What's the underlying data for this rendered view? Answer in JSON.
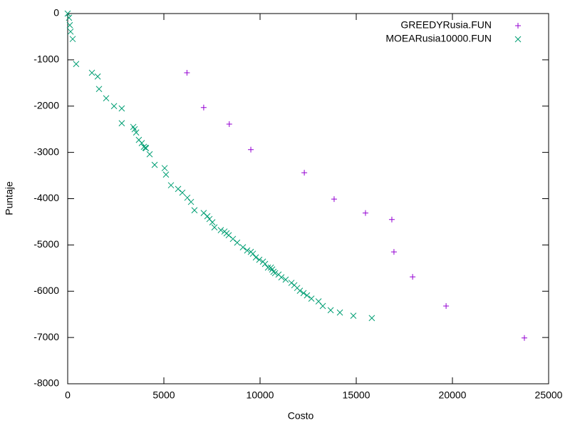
{
  "chart_data": {
    "type": "scatter",
    "x_label": "Costo",
    "y_label": "Puntaje",
    "xlim": [
      0,
      25000
    ],
    "ylim": [
      -8000,
      0
    ],
    "xticks": [
      0,
      5000,
      10000,
      15000,
      20000,
      25000
    ],
    "yticks": [
      -8000,
      -7000,
      -6000,
      -5000,
      -4000,
      -3000,
      -2000,
      -1000,
      0
    ],
    "grid": false,
    "legend": "top-right",
    "series": [
      {
        "name": "GREEDYRusia.FUN",
        "color": "#9400d3",
        "marker": "plus",
        "x": [
          6200,
          7070,
          8400,
          9520,
          12300,
          13850,
          15480,
          16850,
          16960,
          17930,
          19670,
          23740
        ],
        "values": [
          -1280,
          -2030,
          -2390,
          -2940,
          -3440,
          -4010,
          -4310,
          -4450,
          -5150,
          -5690,
          -6320,
          -7010
        ]
      },
      {
        "name": "MOEARusia10000.FUN",
        "color": "#009e73",
        "marker": "cross",
        "x": [
          0,
          70,
          110,
          150,
          260,
          440,
          1260,
          1560,
          1630,
          2000,
          2410,
          2810,
          2810,
          3410,
          3480,
          3560,
          3700,
          3850,
          3960,
          4040,
          4070,
          4260,
          4520,
          5040,
          5110,
          5370,
          5740,
          5960,
          6220,
          6410,
          6590,
          7070,
          7260,
          7370,
          7520,
          7630,
          7960,
          8150,
          8260,
          8370,
          8590,
          8810,
          9110,
          9330,
          9520,
          9630,
          9780,
          9960,
          10150,
          10260,
          10410,
          10560,
          10630,
          10700,
          10780,
          10960,
          11110,
          11330,
          11630,
          11780,
          11930,
          12070,
          12260,
          12440,
          12670,
          13040,
          13260,
          13670,
          14150,
          14850,
          15810
        ],
        "values": [
          0,
          -90,
          -250,
          -390,
          -550,
          -1090,
          -1280,
          -1360,
          -1630,
          -1830,
          -2000,
          -2050,
          -2370,
          -2450,
          -2500,
          -2570,
          -2730,
          -2800,
          -2880,
          -2900,
          -2910,
          -3040,
          -3270,
          -3340,
          -3480,
          -3710,
          -3790,
          -3870,
          -3980,
          -4070,
          -4250,
          -4310,
          -4380,
          -4440,
          -4510,
          -4620,
          -4680,
          -4710,
          -4750,
          -4790,
          -4870,
          -4950,
          -5050,
          -5120,
          -5150,
          -5190,
          -5270,
          -5320,
          -5360,
          -5410,
          -5490,
          -5490,
          -5530,
          -5580,
          -5610,
          -5640,
          -5700,
          -5750,
          -5820,
          -5870,
          -5930,
          -5990,
          -6040,
          -6090,
          -6160,
          -6220,
          -6320,
          -6410,
          -6460,
          -6530,
          -6580
        ]
      }
    ]
  }
}
